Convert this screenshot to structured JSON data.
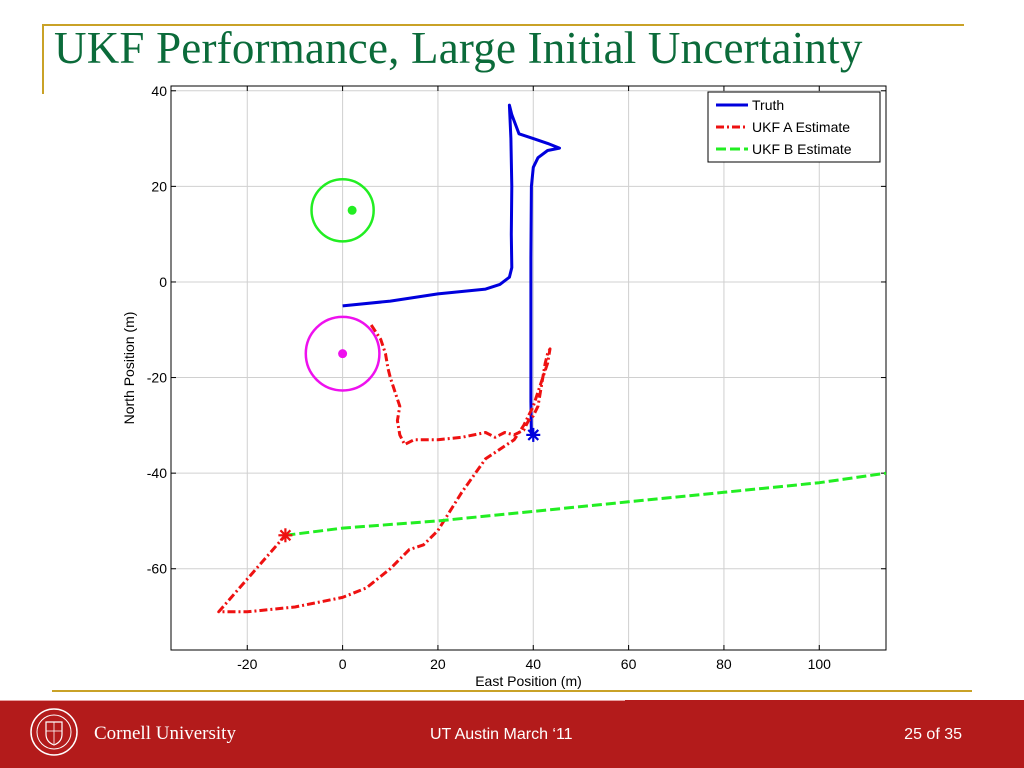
{
  "slide": {
    "title": "UKF Performance, Large Initial Uncertainty"
  },
  "footer": {
    "university": "Cornell University",
    "center_text": "UT Austin March ‘11",
    "page": "25 of 35"
  },
  "colors": {
    "title": "#0b6b3a",
    "gold": "#c9a227",
    "footer_bg": "#b31b1b"
  },
  "chart_data": {
    "type": "line",
    "xlabel": "East Position (m)",
    "ylabel": "North Position (m)",
    "xlim": [
      -36,
      114
    ],
    "ylim": [
      -77,
      41
    ],
    "xticks": [
      -20,
      0,
      20,
      40,
      60,
      80,
      100
    ],
    "yticks": [
      40,
      20,
      0,
      -20,
      -40,
      -60
    ],
    "grid": true,
    "legend_position": "top-right",
    "series": [
      {
        "name": "Truth",
        "color": "#0000dd",
        "dash": "",
        "x": [
          0,
          10,
          20,
          30,
          33,
          35,
          35.5,
          35.4,
          35.5,
          35.3,
          35,
          35.5,
          37,
          40,
          43,
          45.5,
          43,
          41,
          40,
          39.6,
          39.5,
          39.5,
          39.5,
          39.6
        ],
        "y": [
          -5,
          -4,
          -2.5,
          -1.5,
          -0.5,
          1,
          3,
          10,
          20,
          30,
          37,
          35,
          31,
          30,
          29,
          28,
          27.5,
          26,
          24,
          20,
          5,
          -10,
          -25,
          -32
        ]
      },
      {
        "name": "UKF A Estimate",
        "color": "#ee1111",
        "dash": "8,3,2,3",
        "x": [
          6,
          8,
          9,
          9.5,
          10,
          11,
          12,
          11.5,
          12,
          13,
          15,
          20,
          25,
          30,
          32,
          34,
          36,
          38,
          39,
          40,
          41,
          41.5,
          42,
          42.5,
          43,
          43.5,
          43,
          42,
          41,
          40,
          39,
          38,
          36,
          30,
          25,
          20,
          17,
          14,
          10,
          5,
          0,
          -10,
          -20,
          -26,
          -12
        ],
        "y": [
          -9,
          -12,
          -15,
          -18,
          -20,
          -23,
          -26,
          -29,
          -32,
          -34,
          -33,
          -33,
          -32.5,
          -31.5,
          -32.5,
          -31.5,
          -32,
          -31,
          -29,
          -28,
          -26,
          -23,
          -20,
          -17,
          -15,
          -14,
          -17,
          -20,
          -23,
          -26,
          -28,
          -30,
          -33,
          -37,
          -44,
          -52,
          -55,
          -56,
          -60,
          -64,
          -66,
          -68,
          -69,
          -69,
          -53
        ]
      },
      {
        "name": "UKF B Estimate",
        "color": "#22ee22",
        "dash": "10,4",
        "x": [
          -12,
          0,
          20,
          40,
          60,
          80,
          100,
          114
        ],
        "y": [
          -53,
          -51.5,
          -50,
          -48,
          -46,
          -44,
          -42,
          -40
        ]
      }
    ],
    "markers": [
      {
        "type": "star",
        "color": "#0000dd",
        "x": 40,
        "y": -32
      },
      {
        "type": "star",
        "color": "#ee1111",
        "x": -12,
        "y": -53
      },
      {
        "type": "dot",
        "color": "#22ee22",
        "x": 2,
        "y": 15
      },
      {
        "type": "dot",
        "color": "#ee11ee",
        "x": 0,
        "y": -15
      }
    ],
    "circles": [
      {
        "color": "#22ee22",
        "cx": 0,
        "cy": 15,
        "radius": 6.5
      },
      {
        "color": "#ee11ee",
        "cx": 0,
        "cy": -15,
        "radius": 7.7
      }
    ]
  }
}
